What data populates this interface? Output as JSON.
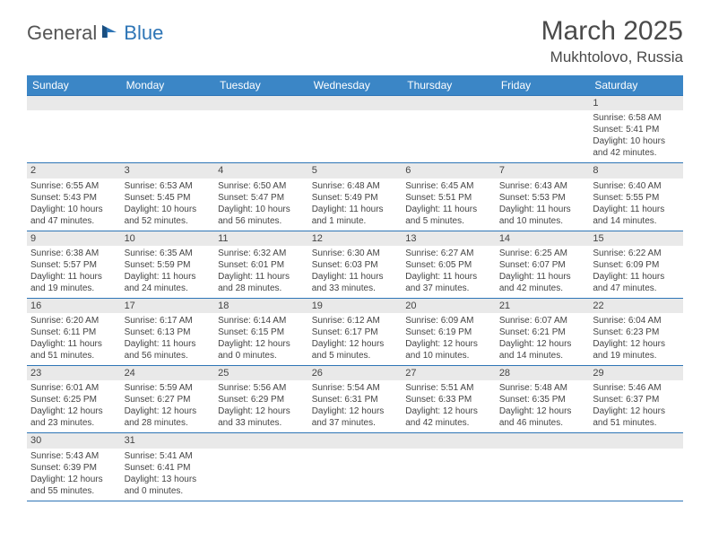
{
  "logo": {
    "word1": "General",
    "word2": "Blue"
  },
  "title": "March 2025",
  "location": "Mukhtolovo, Russia",
  "colors": {
    "header_bg": "#3b86c6",
    "header_text": "#ffffff",
    "daynum_bg": "#e9e9e9",
    "border": "#2e75b6",
    "logo_blue": "#2e75b6",
    "text": "#444444"
  },
  "weekdays": [
    "Sunday",
    "Monday",
    "Tuesday",
    "Wednesday",
    "Thursday",
    "Friday",
    "Saturday"
  ],
  "weeks": [
    [
      {},
      {},
      {},
      {},
      {},
      {},
      {
        "day": "1",
        "sunrise": "Sunrise: 6:58 AM",
        "sunset": "Sunset: 5:41 PM",
        "dl1": "Daylight: 10 hours",
        "dl2": "and 42 minutes."
      }
    ],
    [
      {
        "day": "2",
        "sunrise": "Sunrise: 6:55 AM",
        "sunset": "Sunset: 5:43 PM",
        "dl1": "Daylight: 10 hours",
        "dl2": "and 47 minutes."
      },
      {
        "day": "3",
        "sunrise": "Sunrise: 6:53 AM",
        "sunset": "Sunset: 5:45 PM",
        "dl1": "Daylight: 10 hours",
        "dl2": "and 52 minutes."
      },
      {
        "day": "4",
        "sunrise": "Sunrise: 6:50 AM",
        "sunset": "Sunset: 5:47 PM",
        "dl1": "Daylight: 10 hours",
        "dl2": "and 56 minutes."
      },
      {
        "day": "5",
        "sunrise": "Sunrise: 6:48 AM",
        "sunset": "Sunset: 5:49 PM",
        "dl1": "Daylight: 11 hours",
        "dl2": "and 1 minute."
      },
      {
        "day": "6",
        "sunrise": "Sunrise: 6:45 AM",
        "sunset": "Sunset: 5:51 PM",
        "dl1": "Daylight: 11 hours",
        "dl2": "and 5 minutes."
      },
      {
        "day": "7",
        "sunrise": "Sunrise: 6:43 AM",
        "sunset": "Sunset: 5:53 PM",
        "dl1": "Daylight: 11 hours",
        "dl2": "and 10 minutes."
      },
      {
        "day": "8",
        "sunrise": "Sunrise: 6:40 AM",
        "sunset": "Sunset: 5:55 PM",
        "dl1": "Daylight: 11 hours",
        "dl2": "and 14 minutes."
      }
    ],
    [
      {
        "day": "9",
        "sunrise": "Sunrise: 6:38 AM",
        "sunset": "Sunset: 5:57 PM",
        "dl1": "Daylight: 11 hours",
        "dl2": "and 19 minutes."
      },
      {
        "day": "10",
        "sunrise": "Sunrise: 6:35 AM",
        "sunset": "Sunset: 5:59 PM",
        "dl1": "Daylight: 11 hours",
        "dl2": "and 24 minutes."
      },
      {
        "day": "11",
        "sunrise": "Sunrise: 6:32 AM",
        "sunset": "Sunset: 6:01 PM",
        "dl1": "Daylight: 11 hours",
        "dl2": "and 28 minutes."
      },
      {
        "day": "12",
        "sunrise": "Sunrise: 6:30 AM",
        "sunset": "Sunset: 6:03 PM",
        "dl1": "Daylight: 11 hours",
        "dl2": "and 33 minutes."
      },
      {
        "day": "13",
        "sunrise": "Sunrise: 6:27 AM",
        "sunset": "Sunset: 6:05 PM",
        "dl1": "Daylight: 11 hours",
        "dl2": "and 37 minutes."
      },
      {
        "day": "14",
        "sunrise": "Sunrise: 6:25 AM",
        "sunset": "Sunset: 6:07 PM",
        "dl1": "Daylight: 11 hours",
        "dl2": "and 42 minutes."
      },
      {
        "day": "15",
        "sunrise": "Sunrise: 6:22 AM",
        "sunset": "Sunset: 6:09 PM",
        "dl1": "Daylight: 11 hours",
        "dl2": "and 47 minutes."
      }
    ],
    [
      {
        "day": "16",
        "sunrise": "Sunrise: 6:20 AM",
        "sunset": "Sunset: 6:11 PM",
        "dl1": "Daylight: 11 hours",
        "dl2": "and 51 minutes."
      },
      {
        "day": "17",
        "sunrise": "Sunrise: 6:17 AM",
        "sunset": "Sunset: 6:13 PM",
        "dl1": "Daylight: 11 hours",
        "dl2": "and 56 minutes."
      },
      {
        "day": "18",
        "sunrise": "Sunrise: 6:14 AM",
        "sunset": "Sunset: 6:15 PM",
        "dl1": "Daylight: 12 hours",
        "dl2": "and 0 minutes."
      },
      {
        "day": "19",
        "sunrise": "Sunrise: 6:12 AM",
        "sunset": "Sunset: 6:17 PM",
        "dl1": "Daylight: 12 hours",
        "dl2": "and 5 minutes."
      },
      {
        "day": "20",
        "sunrise": "Sunrise: 6:09 AM",
        "sunset": "Sunset: 6:19 PM",
        "dl1": "Daylight: 12 hours",
        "dl2": "and 10 minutes."
      },
      {
        "day": "21",
        "sunrise": "Sunrise: 6:07 AM",
        "sunset": "Sunset: 6:21 PM",
        "dl1": "Daylight: 12 hours",
        "dl2": "and 14 minutes."
      },
      {
        "day": "22",
        "sunrise": "Sunrise: 6:04 AM",
        "sunset": "Sunset: 6:23 PM",
        "dl1": "Daylight: 12 hours",
        "dl2": "and 19 minutes."
      }
    ],
    [
      {
        "day": "23",
        "sunrise": "Sunrise: 6:01 AM",
        "sunset": "Sunset: 6:25 PM",
        "dl1": "Daylight: 12 hours",
        "dl2": "and 23 minutes."
      },
      {
        "day": "24",
        "sunrise": "Sunrise: 5:59 AM",
        "sunset": "Sunset: 6:27 PM",
        "dl1": "Daylight: 12 hours",
        "dl2": "and 28 minutes."
      },
      {
        "day": "25",
        "sunrise": "Sunrise: 5:56 AM",
        "sunset": "Sunset: 6:29 PM",
        "dl1": "Daylight: 12 hours",
        "dl2": "and 33 minutes."
      },
      {
        "day": "26",
        "sunrise": "Sunrise: 5:54 AM",
        "sunset": "Sunset: 6:31 PM",
        "dl1": "Daylight: 12 hours",
        "dl2": "and 37 minutes."
      },
      {
        "day": "27",
        "sunrise": "Sunrise: 5:51 AM",
        "sunset": "Sunset: 6:33 PM",
        "dl1": "Daylight: 12 hours",
        "dl2": "and 42 minutes."
      },
      {
        "day": "28",
        "sunrise": "Sunrise: 5:48 AM",
        "sunset": "Sunset: 6:35 PM",
        "dl1": "Daylight: 12 hours",
        "dl2": "and 46 minutes."
      },
      {
        "day": "29",
        "sunrise": "Sunrise: 5:46 AM",
        "sunset": "Sunset: 6:37 PM",
        "dl1": "Daylight: 12 hours",
        "dl2": "and 51 minutes."
      }
    ],
    [
      {
        "day": "30",
        "sunrise": "Sunrise: 5:43 AM",
        "sunset": "Sunset: 6:39 PM",
        "dl1": "Daylight: 12 hours",
        "dl2": "and 55 minutes."
      },
      {
        "day": "31",
        "sunrise": "Sunrise: 5:41 AM",
        "sunset": "Sunset: 6:41 PM",
        "dl1": "Daylight: 13 hours",
        "dl2": "and 0 minutes."
      },
      {},
      {},
      {},
      {},
      {}
    ]
  ]
}
